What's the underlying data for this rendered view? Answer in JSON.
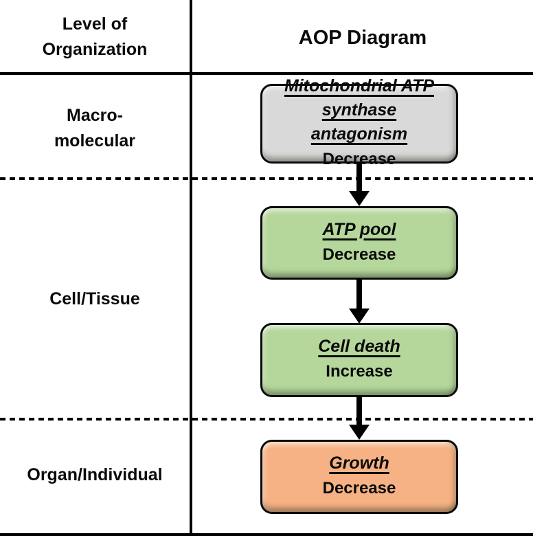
{
  "header": {
    "level_column_title_line1": "Level of",
    "level_column_title_line2": "Organization",
    "diagram_column_title": "AOP Diagram"
  },
  "levels": [
    {
      "id": "macromolecular",
      "label_line1": "Macro-",
      "label_line2": "molecular"
    },
    {
      "id": "cell-tissue",
      "label": "Cell/Tissue"
    },
    {
      "id": "organ-individual",
      "label": "Organ/Individual"
    }
  ],
  "nodes": [
    {
      "title": "Mitochondrial ATP synthase antagonism",
      "direction": "Decrease",
      "fill": "#d9d9d9",
      "level": "Macro-molecular"
    },
    {
      "title": "ATP pool",
      "direction": "Decrease",
      "fill": "#b5d79b",
      "level": "Cell/Tissue"
    },
    {
      "title": "Cell death",
      "direction": "Increase",
      "fill": "#b5d79b",
      "level": "Cell/Tissue"
    },
    {
      "title": "Growth",
      "direction": "Decrease",
      "fill": "#f6b284",
      "level": "Organ/Individual"
    }
  ],
  "colors": {
    "line": "#000000",
    "background": "#ffffff",
    "mie_fill": "#d9d9d9",
    "key_event_fill": "#b5d79b",
    "adverse_outcome_fill": "#f6b284"
  }
}
